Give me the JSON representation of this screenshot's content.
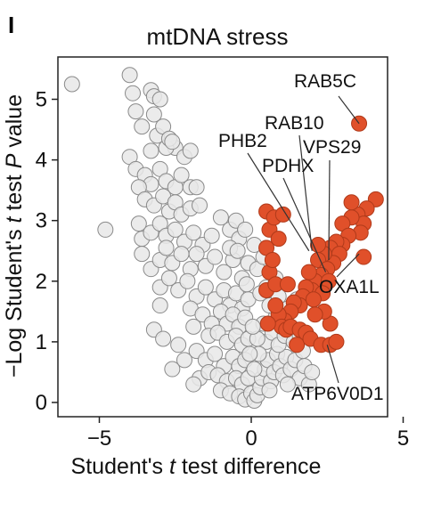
{
  "panel_letter": "I",
  "chart_data": {
    "type": "scatter",
    "title": "mtDNA stress",
    "xlabel_parts": [
      "Student's ",
      "t",
      " test difference"
    ],
    "ylabel_parts": [
      "−Log Student's ",
      "t",
      " test ",
      "P",
      " value"
    ],
    "xlim": [
      -6.5,
      4.3
    ],
    "ylim": [
      -0.2,
      5.6
    ],
    "x_ticks": [
      {
        "value": -5,
        "label": "−5"
      },
      {
        "value": 0,
        "label": "0"
      },
      {
        "value": 5,
        "label": "5"
      }
    ],
    "y_ticks": [
      {
        "value": 0,
        "label": "0"
      },
      {
        "value": 1,
        "label": "1"
      },
      {
        "value": 2,
        "label": "2"
      },
      {
        "value": 3,
        "label": "3"
      },
      {
        "value": 4,
        "label": "4"
      },
      {
        "value": 5,
        "label": "5"
      }
    ],
    "colors": {
      "background_points": "#e8e8e8",
      "background_edge": "#8a8a8a",
      "significant_points": "#e0502a",
      "significant_edge": "#b03a1a"
    },
    "series": [
      {
        "category": "not significant",
        "points": [
          [
            -5.9,
            5.25
          ],
          [
            -4.0,
            5.4
          ],
          [
            -3.9,
            5.1
          ],
          [
            -3.3,
            5.15
          ],
          [
            -3.2,
            5.05
          ],
          [
            -3.0,
            5.0
          ],
          [
            -3.8,
            4.8
          ],
          [
            -3.6,
            4.55
          ],
          [
            -3.2,
            4.75
          ],
          [
            -3.1,
            4.4
          ],
          [
            -2.9,
            4.55
          ],
          [
            -2.5,
            4.2
          ],
          [
            -2.8,
            4.2
          ],
          [
            -2.7,
            4.35
          ],
          [
            -2.6,
            4.3
          ],
          [
            -2.2,
            4.05
          ],
          [
            -2.0,
            4.15
          ],
          [
            -3.3,
            4.15
          ],
          [
            -4.0,
            4.05
          ],
          [
            -3.8,
            3.85
          ],
          [
            -3.5,
            3.75
          ],
          [
            -3.3,
            3.6
          ],
          [
            -3.0,
            3.85
          ],
          [
            -2.8,
            3.65
          ],
          [
            -2.5,
            3.55
          ],
          [
            -2.3,
            3.75
          ],
          [
            -2.0,
            3.55
          ],
          [
            -1.8,
            3.55
          ],
          [
            -3.7,
            3.55
          ],
          [
            -3.5,
            3.35
          ],
          [
            -3.2,
            3.25
          ],
          [
            -2.9,
            3.4
          ],
          [
            -2.7,
            3.15
          ],
          [
            -2.5,
            3.3
          ],
          [
            -2.3,
            3.1
          ],
          [
            -2.0,
            3.2
          ],
          [
            -1.7,
            3.25
          ],
          [
            -4.8,
            2.85
          ],
          [
            -3.7,
            2.95
          ],
          [
            -3.6,
            2.7
          ],
          [
            -3.3,
            2.8
          ],
          [
            -3.0,
            2.95
          ],
          [
            -2.8,
            2.75
          ],
          [
            -2.5,
            2.85
          ],
          [
            -2.2,
            2.65
          ],
          [
            -1.9,
            2.8
          ],
          [
            -1.6,
            2.6
          ],
          [
            -1.3,
            2.75
          ],
          [
            -1.0,
            3.05
          ],
          [
            -0.7,
            2.85
          ],
          [
            -0.4,
            2.7
          ],
          [
            -0.5,
            3.0
          ],
          [
            -3.6,
            2.45
          ],
          [
            -3.3,
            2.2
          ],
          [
            -3.0,
            2.35
          ],
          [
            -2.8,
            2.55
          ],
          [
            -2.6,
            2.3
          ],
          [
            -2.3,
            2.45
          ],
          [
            -2.0,
            2.2
          ],
          [
            -1.8,
            2.45
          ],
          [
            -1.5,
            2.25
          ],
          [
            -1.2,
            2.4
          ],
          [
            -0.9,
            2.15
          ],
          [
            -0.6,
            2.35
          ],
          [
            -0.3,
            2.05
          ],
          [
            -0.1,
            2.3
          ],
          [
            -3.0,
            1.9
          ],
          [
            -2.7,
            2.05
          ],
          [
            -2.4,
            1.85
          ],
          [
            -2.1,
            2.0
          ],
          [
            -1.8,
            1.75
          ],
          [
            -1.5,
            1.9
          ],
          [
            -1.2,
            1.7
          ],
          [
            -0.9,
            1.85
          ],
          [
            -0.7,
            1.6
          ],
          [
            -0.5,
            1.8
          ],
          [
            -0.3,
            1.55
          ],
          [
            -0.1,
            1.7
          ],
          [
            -3.0,
            1.6
          ],
          [
            -2.0,
            1.55
          ],
          [
            -1.6,
            1.45
          ],
          [
            -1.3,
            1.3
          ],
          [
            -1.0,
            1.5
          ],
          [
            -0.8,
            1.3
          ],
          [
            -0.6,
            1.45
          ],
          [
            -0.4,
            1.25
          ],
          [
            -0.2,
            1.4
          ],
          [
            -1.9,
            1.25
          ],
          [
            -1.4,
            1.1
          ],
          [
            -1.1,
            1.15
          ],
          [
            -0.8,
            1.0
          ],
          [
            -0.5,
            1.1
          ],
          [
            -0.3,
            0.95
          ],
          [
            -0.1,
            1.05
          ],
          [
            -2.4,
            0.95
          ],
          [
            -2.2,
            0.7
          ],
          [
            -1.8,
            0.85
          ],
          [
            -1.5,
            0.7
          ],
          [
            -1.2,
            0.8
          ],
          [
            -0.9,
            0.6
          ],
          [
            -0.6,
            0.75
          ],
          [
            -0.4,
            0.6
          ],
          [
            -0.2,
            0.7
          ],
          [
            -1.7,
            0.4
          ],
          [
            -1.4,
            0.5
          ],
          [
            -1.1,
            0.45
          ],
          [
            -0.8,
            0.35
          ],
          [
            -0.5,
            0.4
          ],
          [
            -0.3,
            0.3
          ],
          [
            -0.1,
            0.4
          ],
          [
            -1.9,
            0.3
          ],
          [
            -1.0,
            0.2
          ],
          [
            -0.7,
            0.15
          ],
          [
            -0.4,
            0.1
          ],
          [
            -0.2,
            0.05
          ],
          [
            0.0,
            0.15
          ],
          [
            0.1,
            0.03
          ],
          [
            0.2,
            0.12
          ],
          [
            0.3,
            0.25
          ],
          [
            -3.2,
            1.2
          ],
          [
            -2.9,
            1.05
          ],
          [
            -2.6,
            0.55
          ],
          [
            -0.7,
            2.55
          ],
          [
            0.35,
            0.4
          ],
          [
            0.45,
            0.55
          ],
          [
            0.55,
            0.7
          ],
          [
            0.65,
            0.35
          ],
          [
            0.75,
            0.5
          ],
          [
            0.85,
            0.8
          ],
          [
            0.95,
            0.6
          ],
          [
            1.05,
            0.45
          ],
          [
            1.15,
            0.75
          ],
          [
            1.3,
            0.55
          ],
          [
            1.45,
            0.7
          ],
          [
            1.6,
            0.4
          ],
          [
            1.75,
            0.6
          ],
          [
            1.9,
            0.3
          ],
          [
            2.0,
            0.5
          ],
          [
            1.2,
            0.3
          ],
          [
            0.6,
            0.2
          ],
          [
            0.5,
            1.0
          ],
          [
            0.7,
            1.15
          ],
          [
            0.9,
            0.95
          ],
          [
            1.1,
            1.1
          ],
          [
            1.4,
            1.0
          ],
          [
            1.7,
            0.85
          ],
          [
            0.4,
            1.3
          ],
          [
            0.8,
            1.4
          ],
          [
            1.0,
            1.3
          ],
          [
            1.6,
            1.1
          ],
          [
            0.6,
            1.6
          ],
          [
            0.9,
            1.75
          ],
          [
            1.2,
            1.55
          ],
          [
            1.5,
            1.7
          ],
          [
            0.5,
            1.9
          ],
          [
            0.8,
            2.05
          ],
          [
            0.3,
            1.8
          ],
          [
            0.2,
            2.2
          ],
          [
            0.4,
            2.4
          ],
          [
            0.1,
            2.6
          ],
          [
            -0.2,
            2.85
          ],
          [
            0.1,
            0.55
          ],
          [
            0.25,
            0.8
          ],
          [
            -0.05,
            0.8
          ],
          [
            0.2,
            1.05
          ],
          [
            0.05,
            1.25
          ],
          [
            -0.15,
            1.95
          ],
          [
            -0.45,
            2.5
          ]
        ]
      },
      {
        "category": "significant",
        "points": [
          [
            3.55,
            4.6
          ],
          [
            4.1,
            3.35
          ],
          [
            3.8,
            3.2
          ],
          [
            3.5,
            3.1
          ],
          [
            3.7,
            2.95
          ],
          [
            3.3,
            3.05
          ],
          [
            3.0,
            2.95
          ],
          [
            3.6,
            2.8
          ],
          [
            3.2,
            2.75
          ],
          [
            3.0,
            2.6
          ],
          [
            2.8,
            2.65
          ],
          [
            2.6,
            2.55
          ],
          [
            2.9,
            2.45
          ],
          [
            2.7,
            2.3
          ],
          [
            2.4,
            2.45
          ],
          [
            2.2,
            2.35
          ],
          [
            2.5,
            2.2
          ],
          [
            2.3,
            2.1
          ],
          [
            2.1,
            2.0
          ],
          [
            1.9,
            2.15
          ],
          [
            2.0,
            1.85
          ],
          [
            1.8,
            1.9
          ],
          [
            1.7,
            1.75
          ],
          [
            1.6,
            1.6
          ],
          [
            1.4,
            1.65
          ],
          [
            1.3,
            1.5
          ],
          [
            1.1,
            1.35
          ],
          [
            0.9,
            1.45
          ],
          [
            1.0,
            1.25
          ],
          [
            1.15,
            1.2
          ],
          [
            3.7,
            2.4
          ],
          [
            2.55,
            2.0
          ],
          [
            2.35,
            1.8
          ],
          [
            0.8,
            1.6
          ],
          [
            0.55,
            1.3
          ],
          [
            0.5,
            1.85
          ],
          [
            0.6,
            2.15
          ],
          [
            0.5,
            2.55
          ],
          [
            0.6,
            2.85
          ],
          [
            0.5,
            3.15
          ],
          [
            0.9,
            2.7
          ],
          [
            0.7,
            2.35
          ],
          [
            0.75,
            3.05
          ],
          [
            1.05,
            3.1
          ],
          [
            0.8,
            1.95
          ],
          [
            1.3,
            1.25
          ],
          [
            1.6,
            1.2
          ],
          [
            1.8,
            1.15
          ],
          [
            1.5,
            0.95
          ],
          [
            1.95,
            1.05
          ],
          [
            2.3,
            0.95
          ],
          [
            2.6,
            0.95
          ],
          [
            2.8,
            1.0
          ],
          [
            2.6,
            1.3
          ],
          [
            2.4,
            1.5
          ],
          [
            2.1,
            1.45
          ],
          [
            2.05,
            1.7
          ],
          [
            1.2,
            1.95
          ],
          [
            3.3,
            3.3
          ],
          [
            2.2,
            2.6
          ]
        ]
      }
    ],
    "annotations": [
      {
        "label": "RAB5C",
        "point": [
          3.55,
          4.6
        ]
      },
      {
        "label": "RAB10",
        "point": [
          2.0,
          2.5
        ]
      },
      {
        "label": "VPS29",
        "point": [
          2.55,
          2.35
        ]
      },
      {
        "label": "PHB2",
        "point": [
          1.9,
          2.5
        ]
      },
      {
        "label": "PDHX",
        "point": [
          2.45,
          2.15
        ]
      },
      {
        "label": "OXA1L",
        "point": [
          3.55,
          2.45
        ]
      },
      {
        "label": "ATP6V0D1",
        "point": [
          2.5,
          0.95
        ]
      }
    ]
  }
}
